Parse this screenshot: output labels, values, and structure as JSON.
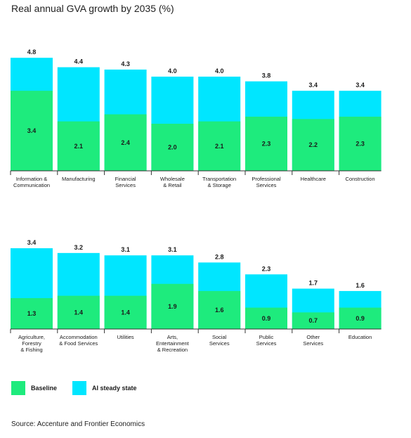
{
  "title": "Real annual GVA growth by 2035 (%)",
  "source": "Source: Accenture and Frontier Economics",
  "colors": {
    "baseline": "#1EEB7D",
    "ai": "#00E6FF",
    "axis": "#333333"
  },
  "legend": [
    {
      "label": "Baseline",
      "color": "#1EEB7D"
    },
    {
      "label": "AI steady state",
      "color": "#00E6FF"
    }
  ],
  "chart_data": [
    {
      "type": "bar",
      "stacked": "overlay",
      "title": "Real annual GVA growth by 2035 (%)",
      "categories": [
        [
          "Information &",
          "Communication"
        ],
        [
          "Manufacturing"
        ],
        [
          "Financial",
          "Services"
        ],
        [
          "Wholesale",
          "& Retail"
        ],
        [
          "Transportation",
          "& Storage"
        ],
        [
          "Professional",
          "Services"
        ],
        [
          "Healthcare"
        ],
        [
          "Construction"
        ]
      ],
      "series": [
        {
          "name": "Baseline",
          "values": [
            3.4,
            2.1,
            2.4,
            2.0,
            2.1,
            2.3,
            2.2,
            2.3
          ]
        },
        {
          "name": "AI steady state",
          "values": [
            4.8,
            4.4,
            4.3,
            4.0,
            4.0,
            3.8,
            3.4,
            3.4
          ]
        }
      ],
      "ylim": [
        0,
        4.8
      ]
    },
    {
      "type": "bar",
      "stacked": "overlay",
      "categories": [
        [
          "Agriculture,",
          "Forestry",
          "& Fishing"
        ],
        [
          "Accommodation",
          "& Food Services"
        ],
        [
          "Utilities"
        ],
        [
          "Arts,",
          "Entertainment",
          "& Recreation"
        ],
        [
          "Social",
          "Services"
        ],
        [
          "Public",
          "Services"
        ],
        [
          "Other",
          "Services"
        ],
        [
          "Education"
        ]
      ],
      "series": [
        {
          "name": "Baseline",
          "values": [
            1.3,
            1.4,
            1.4,
            1.9,
            1.6,
            0.9,
            0.7,
            0.9
          ]
        },
        {
          "name": "AI steady state",
          "values": [
            3.4,
            3.2,
            3.1,
            3.1,
            2.8,
            2.3,
            1.7,
            1.6
          ]
        }
      ],
      "ylim": [
        0,
        3.4
      ]
    }
  ]
}
